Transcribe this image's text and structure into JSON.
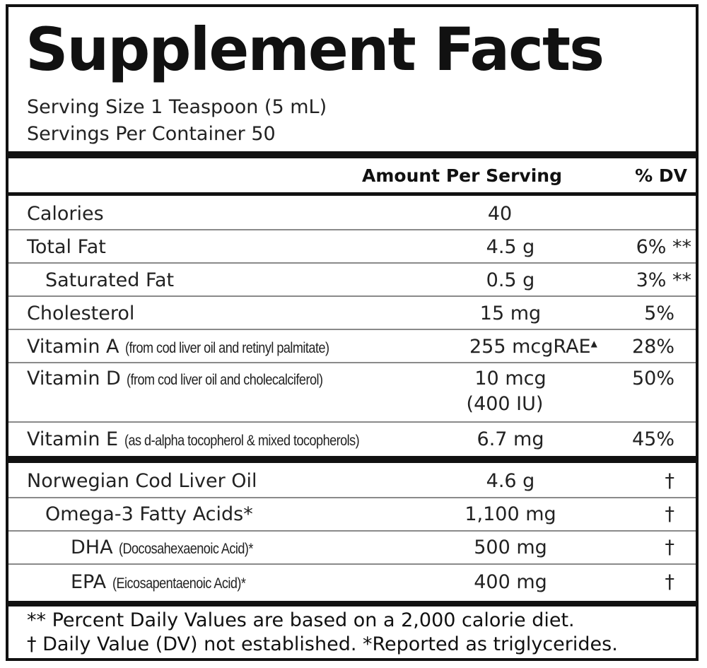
{
  "title": "Supplement Facts",
  "serving_size": "Serving Size 1 Teaspoon (5 mL)",
  "servings_per_container": "Servings Per Container 50",
  "header": {
    "amount_label": "Amount Per Serving",
    "dv_label": "% DV"
  },
  "nutrients": [
    {
      "name": "Calories",
      "note": "",
      "amount": "40",
      "amount_note": "",
      "dv": ""
    },
    {
      "name": "Total Fat",
      "note": "",
      "amount": "4.5 g",
      "amount_note": "",
      "dv": "6% **"
    },
    {
      "name": "Saturated Fat",
      "note": "",
      "amount": "0.5 g",
      "amount_note": "",
      "dv": "3% **"
    },
    {
      "name": "Cholesterol",
      "note": "",
      "amount": "15 mg",
      "amount_note": "",
      "dv": "5%"
    },
    {
      "name": "Vitamin A",
      "note": "(from cod liver oil and retinyl palmitate)",
      "amount": "255 mcgRAE",
      "amount_note": "▲",
      "dv": "28%"
    },
    {
      "name": "Vitamin D",
      "note": "(from cod liver oil and cholecalciferol)",
      "amount": "10 mcg",
      "amount_note": "(400 IU)",
      "dv": "50%"
    },
    {
      "name": "Vitamin E",
      "note": "(as d-alpha tocopherol & mixed tocopherols)",
      "amount": "6.7 mg",
      "amount_note": "",
      "dv": "45%"
    }
  ],
  "ingredients": [
    {
      "name": "Norwegian Cod Liver Oil",
      "note": "",
      "amount": "4.6 g",
      "dv": "†"
    },
    {
      "name": "Omega-3 Fatty Acids*",
      "note": "",
      "amount": "1,100 mg",
      "dv": "†"
    },
    {
      "name": "DHA",
      "note": "(Docosahexaenoic Acid)*",
      "amount": "500 mg",
      "dv": "†"
    },
    {
      "name": "EPA",
      "note": "(Eicosapentaenoic Acid)*",
      "amount": "400 mg",
      "dv": "†"
    }
  ],
  "footnotes": [
    "** Percent Daily Values are based on a 2,000 calorie diet.",
    "† Daily Value (DV) not established. *Reported as triglycerides."
  ]
}
